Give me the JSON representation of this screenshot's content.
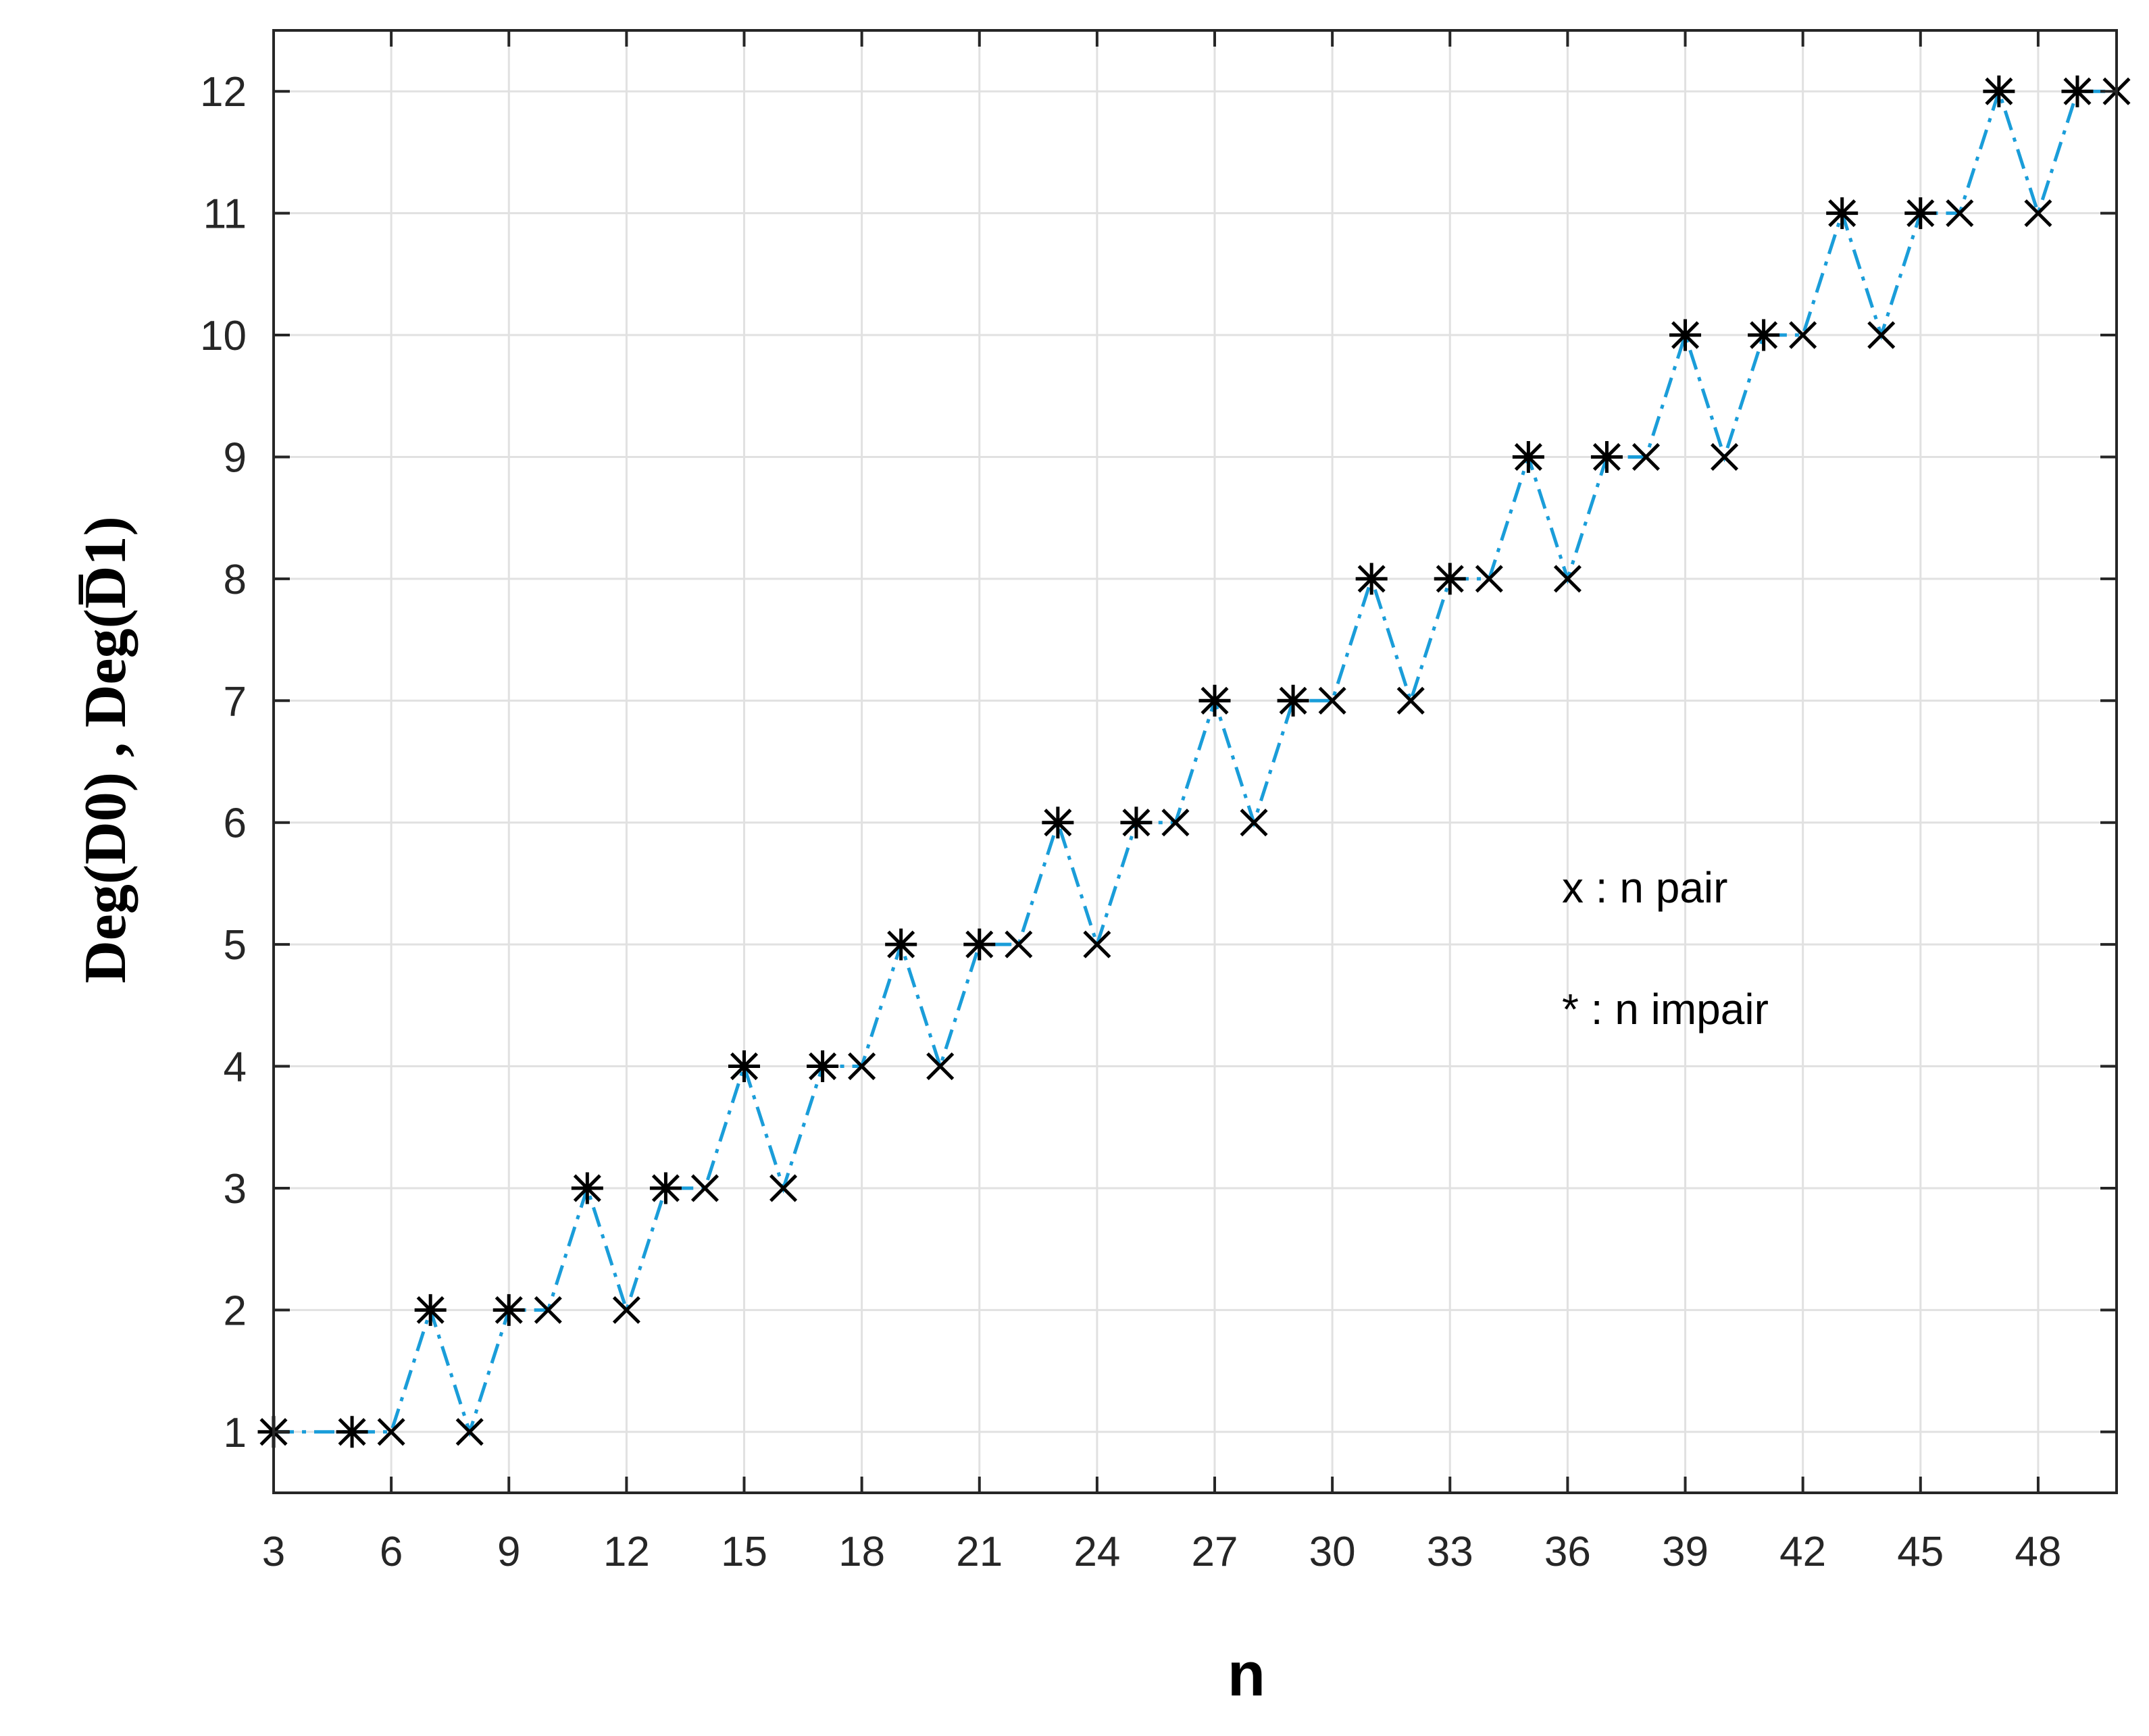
{
  "chart_data": {
    "type": "line",
    "title": "",
    "xlabel": "n",
    "ylabel": "Deg(D0) , Deg(D̅1)",
    "xlim": [
      3,
      50
    ],
    "ylim": [
      0.5,
      12.5
    ],
    "xticks": [
      3,
      6,
      9,
      12,
      15,
      18,
      21,
      24,
      27,
      30,
      33,
      36,
      39,
      42,
      45,
      48
    ],
    "yticks": [
      1,
      2,
      3,
      4,
      5,
      6,
      7,
      8,
      9,
      10,
      11,
      12
    ],
    "grid": true,
    "line_color": "#1a9dd9",
    "line_style": "dash-dot",
    "x": [
      3,
      5,
      6,
      7,
      8,
      9,
      10,
      11,
      12,
      13,
      14,
      15,
      16,
      17,
      18,
      19,
      20,
      21,
      22,
      23,
      24,
      25,
      26,
      27,
      28,
      29,
      30,
      31,
      32,
      33,
      34,
      35,
      36,
      37,
      38,
      39,
      40,
      41,
      42,
      43,
      44,
      45,
      46,
      47,
      48,
      49,
      50
    ],
    "y": [
      1,
      1,
      1,
      2,
      1,
      2,
      2,
      3,
      2,
      3,
      3,
      4,
      3,
      4,
      4,
      5,
      4,
      5,
      5,
      6,
      5,
      6,
      6,
      7,
      6,
      7,
      7,
      8,
      7,
      8,
      8,
      9,
      8,
      9,
      9,
      10,
      9,
      10,
      10,
      11,
      10,
      11,
      11,
      12,
      11,
      12,
      12
    ],
    "legend_position": "right-middle",
    "annotations": [
      {
        "marker": "x",
        "text": "x : n pair"
      },
      {
        "marker": "*",
        "text": "* : n impair"
      }
    ]
  }
}
